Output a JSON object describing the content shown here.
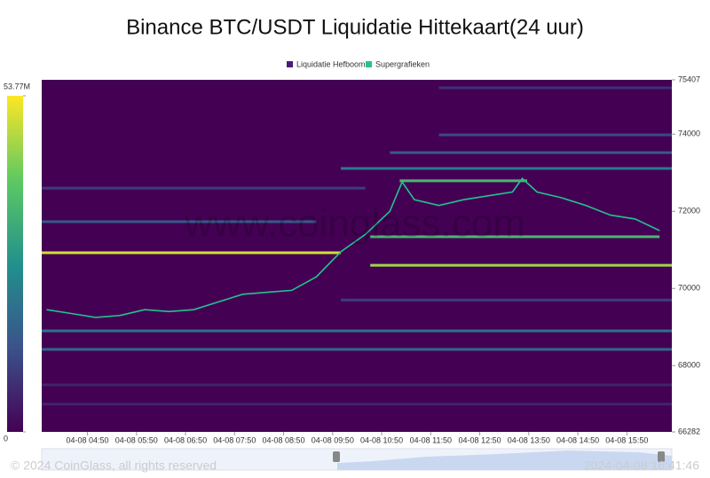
{
  "chart_data": {
    "type": "heatmap",
    "title": "Binance BTC/USDT Liquidatie Hittekaart(24 uur)",
    "legend": [
      {
        "name": "Liquidatie Hefboom",
        "color": "#4b1a78"
      },
      {
        "name": "Supergrafieken",
        "color": "#22c38e"
      }
    ],
    "watermark": "www.coinglass.com",
    "footer_left": "© 2024 CoinGlass, all rights reserved",
    "footer_right": "2024-04-08 16:41:46",
    "xlim": [
      3.9,
      16.75
    ],
    "xticks": [
      {
        "value": 4.833,
        "label": "04-08 04:50"
      },
      {
        "value": 5.833,
        "label": "04-08 05:50"
      },
      {
        "value": 6.833,
        "label": "04-08 06:50"
      },
      {
        "value": 7.833,
        "label": "04-08 07:50"
      },
      {
        "value": 8.833,
        "label": "04-08 08:50"
      },
      {
        "value": 9.833,
        "label": "04-08 09:50"
      },
      {
        "value": 10.833,
        "label": "04-08 10:50"
      },
      {
        "value": 11.833,
        "label": "04-08 11:50"
      },
      {
        "value": 12.833,
        "label": "04-08 12:50"
      },
      {
        "value": 13.833,
        "label": "04-08 13:50"
      },
      {
        "value": 14.833,
        "label": "04-08 14:50"
      },
      {
        "value": 15.833,
        "label": "04-08 15:50"
      }
    ],
    "ylim": [
      66282,
      75407
    ],
    "yticks": [
      66282,
      68000,
      70000,
      72000,
      74000,
      75407
    ],
    "clim": [
      0,
      53.77
    ],
    "colorbar_ticks": [
      {
        "value": 53.77,
        "label": "53.77M"
      },
      0
    ],
    "price": {
      "x": [
        4.0,
        4.5,
        5.0,
        5.5,
        6.0,
        6.5,
        7.0,
        7.5,
        8.0,
        8.5,
        9.0,
        9.5,
        10.0,
        10.5,
        11.0,
        11.25,
        11.5,
        12.0,
        12.5,
        13.0,
        13.5,
        13.7,
        14.0,
        14.5,
        15.0,
        15.5,
        16.0,
        16.5
      ],
      "values": [
        69450,
        69350,
        69250,
        69300,
        69450,
        69400,
        69450,
        69650,
        69850,
        69900,
        69950,
        70300,
        70950,
        71400,
        72000,
        72760,
        72300,
        72150,
        72300,
        72400,
        72500,
        72850,
        72500,
        72350,
        72150,
        71900,
        71800,
        71500
      ]
    },
    "levels": [
      {
        "price": 70925,
        "start": 3.9,
        "end": 10.0,
        "value": 50
      },
      {
        "price": 70600,
        "start": 10.6,
        "end": 16.75,
        "value": 46
      },
      {
        "price": 71340,
        "start": 10.6,
        "end": 16.5,
        "value": 36
      },
      {
        "price": 72790,
        "start": 11.2,
        "end": 13.8,
        "value": 36
      },
      {
        "price": 73110,
        "start": 10.0,
        "end": 16.75,
        "value": 22
      },
      {
        "price": 68900,
        "start": 3.9,
        "end": 16.75,
        "value": 20
      },
      {
        "price": 68420,
        "start": 3.9,
        "end": 16.75,
        "value": 18
      },
      {
        "price": 73520,
        "start": 11.0,
        "end": 16.75,
        "value": 15
      },
      {
        "price": 73980,
        "start": 12.0,
        "end": 16.75,
        "value": 12
      },
      {
        "price": 71730,
        "start": 3.9,
        "end": 9.5,
        "value": 15
      },
      {
        "price": 72600,
        "start": 3.9,
        "end": 10.5,
        "value": 10
      },
      {
        "price": 69700,
        "start": 10.0,
        "end": 16.75,
        "value": 10
      },
      {
        "price": 75200,
        "start": 12.0,
        "end": 16.75,
        "value": 8
      },
      {
        "price": 67500,
        "start": 3.9,
        "end": 16.75,
        "value": 6
      },
      {
        "price": 67000,
        "start": 3.9,
        "end": 16.75,
        "value": 6
      }
    ]
  }
}
